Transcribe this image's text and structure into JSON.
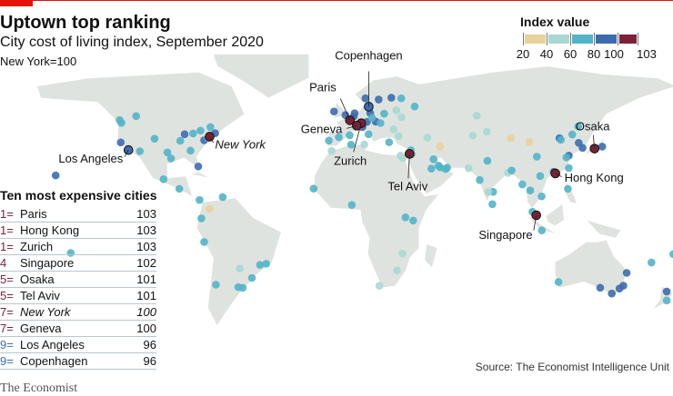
{
  "header": {
    "title": "Uptown top ranking",
    "subtitle": "City cost of living index, September 2020",
    "note": "New York=100"
  },
  "legend": {
    "title": "Index value",
    "ticks": [
      "20",
      "40",
      "60",
      "80",
      "100",
      "103"
    ],
    "colors": [
      "#e8d19b",
      "#a8d8d3",
      "#52b4c8",
      "#3c6cae",
      "#7a2236"
    ]
  },
  "table": {
    "title": "Ten most expensive cities",
    "rows": [
      {
        "rank": "1=",
        "city": "Paris",
        "value": "103",
        "rank_color": "#7a2236"
      },
      {
        "rank": "1=",
        "city": "Hong Kong",
        "value": "103",
        "rank_color": "#7a2236"
      },
      {
        "rank": "1=",
        "city": "Zurich",
        "value": "103",
        "rank_color": "#7a2236"
      },
      {
        "rank": "4",
        "city": "Singapore",
        "value": "102",
        "rank_color": "#7a2236"
      },
      {
        "rank": "5=",
        "city": "Osaka",
        "value": "101",
        "rank_color": "#7a2236"
      },
      {
        "rank": "5=",
        "city": "Tel Aviv",
        "value": "101",
        "rank_color": "#7a2236"
      },
      {
        "rank": "7=",
        "city": "New York",
        "value": "100",
        "rank_color": "#7a2236"
      },
      {
        "rank": "7=",
        "city": "Geneva",
        "value": "100",
        "rank_color": "#7a2236"
      },
      {
        "rank": "9=",
        "city": "Los Angeles",
        "value": "96",
        "rank_color": "#3c6cae"
      },
      {
        "rank": "9=",
        "city": "Copenhagen",
        "value": "96",
        "rank_color": "#3c6cae"
      }
    ]
  },
  "chart_data": {
    "type": "scatter",
    "title": "Uptown top ranking",
    "subtitle": "City cost of living index, September 2020",
    "labelled_cities": [
      {
        "name": "Paris",
        "lon": 2.35,
        "lat": 48.9,
        "value": 103
      },
      {
        "name": "Hong Kong",
        "lon": 114.2,
        "lat": 22.3,
        "value": 103
      },
      {
        "name": "Zurich",
        "lon": 8.5,
        "lat": 47.4,
        "value": 103
      },
      {
        "name": "Singapore",
        "lon": 103.8,
        "lat": 1.35,
        "value": 102
      },
      {
        "name": "Osaka",
        "lon": 135.5,
        "lat": 34.7,
        "value": 101
      },
      {
        "name": "Tel Aviv",
        "lon": 34.8,
        "lat": 32.1,
        "value": 101
      },
      {
        "name": "New York",
        "lon": -74,
        "lat": 40.7,
        "value": 100
      },
      {
        "name": "Geneva",
        "lon": 6.1,
        "lat": 46.2,
        "value": 100
      },
      {
        "name": "Los Angeles",
        "lon": -118.2,
        "lat": 34,
        "value": 96
      },
      {
        "name": "Copenhagen",
        "lon": 12.6,
        "lat": 55.7,
        "value": 96
      }
    ],
    "other_cities": [
      [
        -123,
        49,
        60
      ],
      [
        -122,
        47.6,
        70
      ],
      [
        -114,
        51,
        60
      ],
      [
        -79,
        43.7,
        70
      ],
      [
        -73.6,
        45.5,
        70
      ],
      [
        -87.6,
        41.9,
        80
      ],
      [
        -83,
        42.3,
        70
      ],
      [
        -90,
        38.6,
        70
      ],
      [
        -95,
        29.8,
        70
      ],
      [
        -97,
        32.8,
        70
      ],
      [
        -104,
        39.7,
        70
      ],
      [
        -112,
        33.4,
        70
      ],
      [
        -80.2,
        25.8,
        80
      ],
      [
        -84.4,
        33.7,
        70
      ],
      [
        -77,
        38.9,
        80
      ],
      [
        -71,
        42.4,
        80
      ],
      [
        -122.4,
        37.8,
        90
      ],
      [
        -75,
        40,
        70
      ],
      [
        -157.8,
        21.3,
        80
      ],
      [
        -99.1,
        19.4,
        60
      ],
      [
        -90.5,
        14.6,
        60
      ],
      [
        -79.5,
        9,
        60
      ],
      [
        -74,
        4.6,
        30
      ],
      [
        -66.9,
        10.5,
        60
      ],
      [
        -78.5,
        -0.2,
        60
      ],
      [
        -77,
        -12,
        60
      ],
      [
        -58.4,
        -34.6,
        60
      ],
      [
        -46.6,
        -23.5,
        60
      ],
      [
        -43.2,
        -22.9,
        60
      ],
      [
        -70.6,
        -33.4,
        60
      ],
      [
        -56,
        -34.9,
        60
      ],
      [
        -57.6,
        -25.3,
        40
      ],
      [
        -51,
        -30,
        60
      ],
      [
        -0.1,
        51.5,
        80
      ],
      [
        -6.3,
        53.3,
        80
      ],
      [
        -3.7,
        40.4,
        60
      ],
      [
        2.2,
        41.4,
        60
      ],
      [
        -9.1,
        38.7,
        60
      ],
      [
        4.9,
        52.4,
        80
      ],
      [
        4.4,
        50.8,
        80
      ],
      [
        13.4,
        52.5,
        80
      ],
      [
        11.6,
        48.1,
        80
      ],
      [
        16.4,
        48.2,
        80
      ],
      [
        12.5,
        41.9,
        70
      ],
      [
        9.2,
        45.5,
        80
      ],
      [
        10.8,
        59.9,
        80
      ],
      [
        18,
        59.3,
        80
      ],
      [
        24.9,
        60.2,
        80
      ],
      [
        21,
        52.2,
        60
      ],
      [
        14.4,
        50.1,
        60
      ],
      [
        19,
        47.5,
        60
      ],
      [
        26.1,
        44.4,
        40
      ],
      [
        23.7,
        37.9,
        60
      ],
      [
        28.9,
        41,
        40
      ],
      [
        30.5,
        50.4,
        40
      ],
      [
        37.6,
        55.8,
        60
      ],
      [
        30.3,
        59.9,
        60
      ],
      [
        27.6,
        53.9,
        40
      ],
      [
        44.5,
        40.2,
        40
      ],
      [
        51.4,
        35.7,
        30
      ],
      [
        46.7,
        24.7,
        60
      ],
      [
        55.3,
        25.2,
        60
      ],
      [
        54.4,
        24.5,
        60
      ],
      [
        51.5,
        25.3,
        60
      ],
      [
        50.6,
        26.2,
        60
      ],
      [
        47.9,
        29.4,
        60
      ],
      [
        35.9,
        31.9,
        60
      ],
      [
        35.5,
        33.9,
        60
      ],
      [
        31.2,
        30,
        40
      ],
      [
        29.9,
        31.2,
        40
      ],
      [
        3,
        36.7,
        60
      ],
      [
        -7.6,
        33.6,
        40
      ],
      [
        10.2,
        36.8,
        40
      ],
      [
        -17.4,
        14.7,
        60
      ],
      [
        3.4,
        6.5,
        60
      ],
      [
        36.8,
        -1.3,
        60
      ],
      [
        28,
        -26.2,
        40
      ],
      [
        18.4,
        -33.9,
        40
      ],
      [
        31,
        -17.8,
        40
      ],
      [
        32.6,
        0.3,
        60
      ],
      [
        69.2,
        41.3,
        40
      ],
      [
        71.4,
        51.2,
        40
      ],
      [
        76.9,
        43.2,
        40
      ],
      [
        67,
        24.9,
        40
      ],
      [
        73,
        19,
        60
      ],
      [
        77.2,
        28.6,
        60
      ],
      [
        88.4,
        22.6,
        40
      ],
      [
        80.3,
        13.1,
        60
      ],
      [
        77.6,
        13,
        40
      ],
      [
        79.9,
        6.9,
        60
      ],
      [
        90.4,
        23.8,
        60
      ],
      [
        96.2,
        16.8,
        60
      ],
      [
        100.5,
        13.8,
        60
      ],
      [
        106.7,
        10.8,
        60
      ],
      [
        105.9,
        21,
        60
      ],
      [
        101.7,
        3.1,
        60
      ],
      [
        106.8,
        -6.2,
        60
      ],
      [
        121,
        14.6,
        60
      ],
      [
        116.4,
        39.9,
        80
      ],
      [
        121.5,
        31.2,
        80
      ],
      [
        113.3,
        23.1,
        80
      ],
      [
        114.1,
        22.5,
        80
      ],
      [
        104.1,
        30.7,
        60
      ],
      [
        117.2,
        39.1,
        60
      ],
      [
        123.4,
        41.8,
        60
      ],
      [
        126.6,
        45.8,
        60
      ],
      [
        120.2,
        30.3,
        60
      ],
      [
        126.9,
        37.6,
        80
      ],
      [
        129,
        35.1,
        80
      ],
      [
        139.7,
        35.7,
        90
      ],
      [
        121.5,
        25,
        60
      ],
      [
        151.2,
        -33.9,
        80
      ],
      [
        144.9,
        -37.8,
        80
      ],
      [
        153,
        -27.5,
        80
      ],
      [
        115.9,
        -32,
        60
      ],
      [
        138.6,
        -34.9,
        80
      ],
      [
        149.1,
        -35.3,
        80
      ],
      [
        174.8,
        -36.8,
        80
      ],
      [
        174.8,
        -41.3,
        60
      ],
      [
        -149.6,
        -17.5,
        60
      ],
      [
        166.5,
        -22.3,
        60
      ],
      [
        178.4,
        -18.1,
        60
      ],
      [
        90,
        40,
        30
      ],
      [
        100,
        38,
        30
      ]
    ]
  },
  "source": "Source: The Economist Intelligence Unit",
  "brand": "The Economist"
}
